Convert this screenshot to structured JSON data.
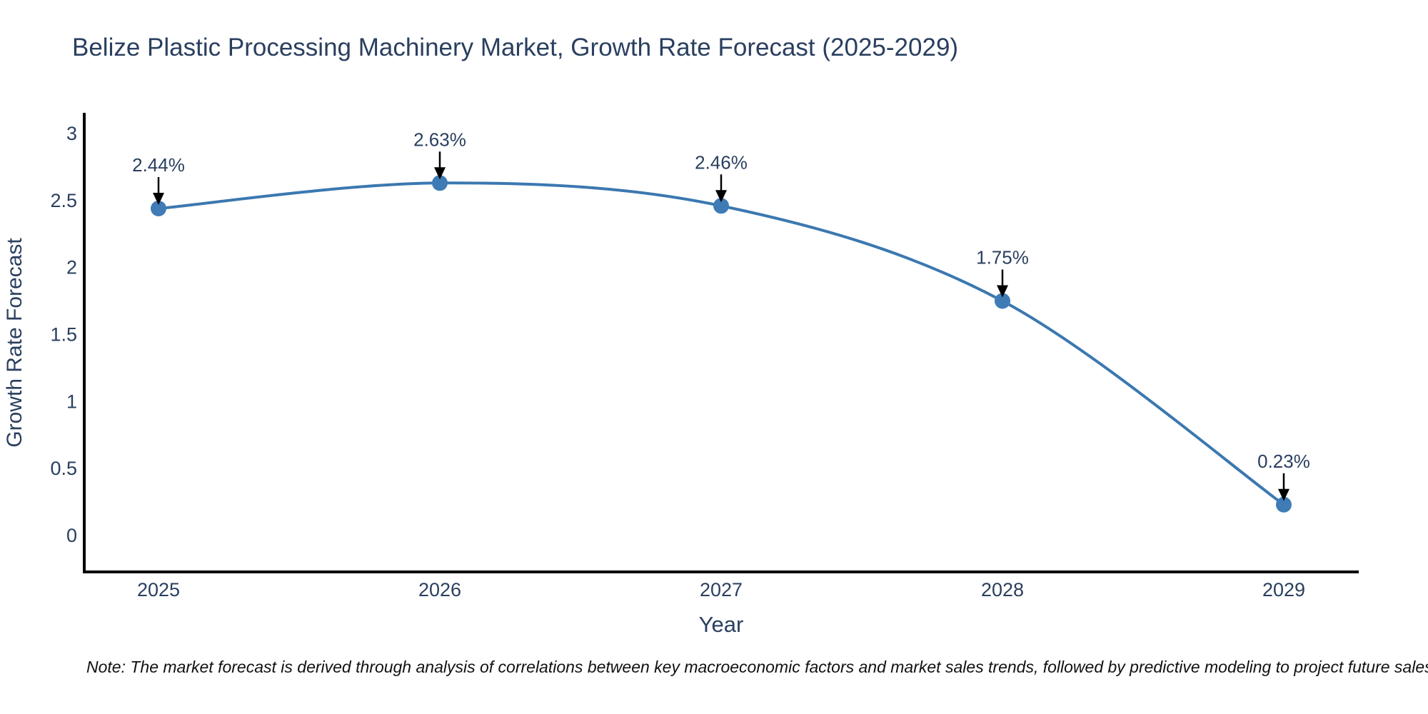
{
  "header": {
    "title": "Belize Plastic Processing Machinery Market, Growth Rate Forecast (2025-2029)"
  },
  "chart_data": {
    "type": "line",
    "title": "Belize Plastic Processing Machinery Market, Growth Rate Forecast (2025-2029)",
    "x": [
      2025,
      2026,
      2027,
      2028,
      2029
    ],
    "categories": [
      "2025",
      "2026",
      "2027",
      "2028",
      "2029"
    ],
    "series": [
      {
        "name": "Growth Rate Forecast",
        "values": [
          2.44,
          2.63,
          2.46,
          1.75,
          0.23
        ],
        "point_labels": [
          "2.44%",
          "2.63%",
          "2.46%",
          "1.75%",
          "0.23%"
        ]
      }
    ],
    "xlabel": "Year",
    "ylabel": "Growth Rate Forecast",
    "ylim": [
      -0.28,
      3.15
    ],
    "yticks": [
      "0",
      "0.5",
      "1",
      "1.5",
      "2",
      "2.5",
      "3"
    ],
    "ytick_values": [
      0,
      0.5,
      1,
      1.5,
      2,
      2.5,
      3
    ],
    "line_shape": "spline",
    "grid": false,
    "legend_position": "none",
    "annotations_have_arrows": true,
    "colors": {
      "line": "#3b78b0",
      "marker": "#3f7cb6",
      "label_text": "#2a3f5f",
      "axis_line": "#000000",
      "arrow": "#000000",
      "background": "#ffffff"
    }
  },
  "footnote": {
    "text": "Note: The market forecast is derived through analysis of correlations between key macroeconomic factors and market sales trends, followed by predictive modeling to project future sales trends."
  }
}
